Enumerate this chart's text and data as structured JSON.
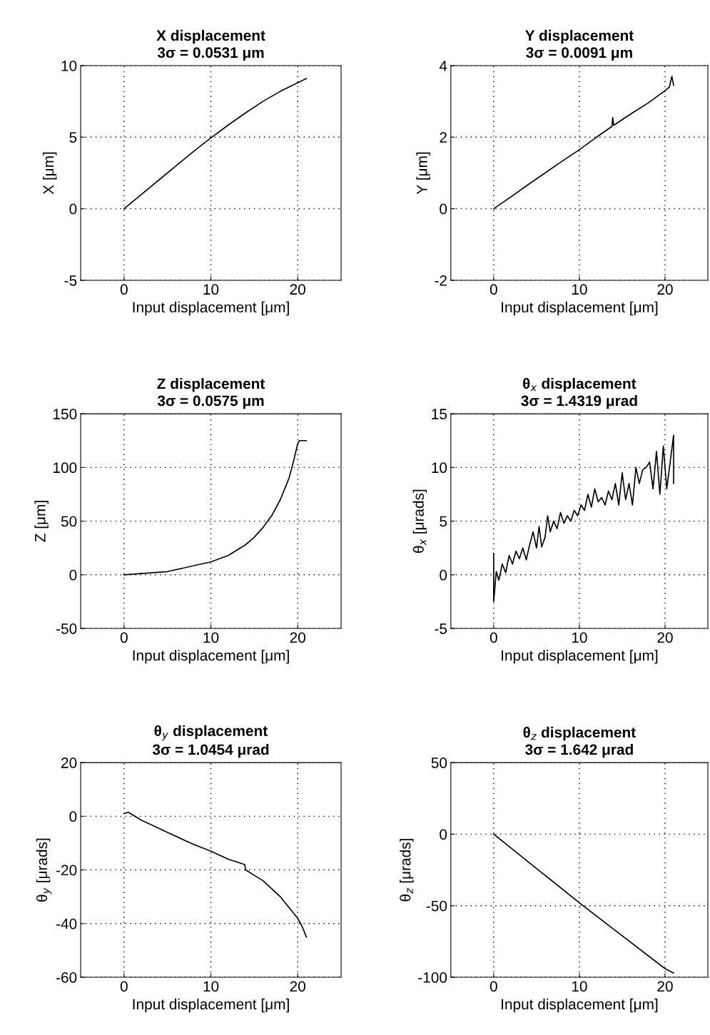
{
  "chart_data": [
    {
      "type": "line",
      "title": "X displacement",
      "subtitle": "3σ = 0.0531 μm",
      "xlabel": "Input displacement [μm]",
      "ylabel": "X [μm]",
      "xlim": [
        -5,
        25
      ],
      "xticks": [
        0,
        10,
        20
      ],
      "ylim": [
        -5,
        10
      ],
      "yticks": [
        -5,
        0,
        5,
        10
      ],
      "grid": true,
      "series": [
        {
          "color": "#000000",
          "x": [
            0,
            2,
            4,
            6,
            8,
            10,
            12,
            14,
            16,
            18,
            20,
            21
          ],
          "values": [
            0,
            1.0,
            2.0,
            3.0,
            4.0,
            4.95,
            5.85,
            6.7,
            7.5,
            8.2,
            8.8,
            9.1
          ]
        }
      ]
    },
    {
      "type": "line",
      "title": "Y displacement",
      "subtitle": "3σ = 0.0091 μm",
      "xlabel": "Input displacement [μm]",
      "ylabel": "Y [μm]",
      "xlim": [
        -5,
        25
      ],
      "xticks": [
        0,
        10,
        20
      ],
      "ylim": [
        -2,
        4
      ],
      "yticks": [
        -2,
        0,
        2,
        4
      ],
      "grid": true,
      "series": [
        {
          "color": "#000000",
          "x": [
            0,
            2,
            4,
            6,
            8,
            10,
            12,
            13.8,
            13.9,
            14,
            16,
            18,
            20,
            20.5,
            20.8,
            21
          ],
          "values": [
            0,
            0.33,
            0.67,
            1.0,
            1.33,
            1.65,
            2.0,
            2.3,
            2.55,
            2.33,
            2.65,
            2.95,
            3.3,
            3.4,
            3.7,
            3.45
          ]
        }
      ]
    },
    {
      "type": "line",
      "title": "Z displacement",
      "subtitle": "3σ = 0.0575 μm",
      "xlabel": "Input displacement [μm]",
      "ylabel": "Z [μm]",
      "xlim": [
        -5,
        25
      ],
      "xticks": [
        0,
        10,
        20
      ],
      "ylim": [
        -50,
        150
      ],
      "yticks": [
        -50,
        0,
        50,
        100,
        150
      ],
      "grid": true,
      "series": [
        {
          "color": "#000000",
          "x": [
            0,
            5,
            10,
            12,
            14,
            15,
            16,
            17,
            18,
            19,
            19.5,
            20,
            20.2,
            21
          ],
          "values": [
            0,
            3,
            12,
            18,
            28,
            35,
            44,
            55,
            70,
            90,
            105,
            122,
            125,
            125
          ]
        }
      ]
    },
    {
      "type": "line",
      "title": "θ$_{x}$ displacement",
      "subtitle": "3σ = 1.4319 μrad",
      "xlabel": "Input displacement [μm]",
      "ylabel": "θ$_{x}$ [μrads]",
      "xlim": [
        -5,
        25
      ],
      "xticks": [
        0,
        10,
        20
      ],
      "ylim": [
        -5,
        15
      ],
      "yticks": [
        -5,
        0,
        5,
        10,
        15
      ],
      "grid": true,
      "series": [
        {
          "color": "#000000",
          "x": [
            0,
            0,
            0,
            0.3,
            0.6,
            1,
            1.4,
            1.8,
            2.2,
            2.6,
            3,
            3.4,
            3.8,
            4.2,
            4.6,
            5,
            5.3,
            5.6,
            6,
            6.3,
            6.6,
            7,
            7.4,
            7.8,
            8.2,
            8.6,
            9,
            9.4,
            9.8,
            10.2,
            10.6,
            11,
            11.4,
            11.8,
            12.2,
            12.6,
            13,
            13.4,
            13.8,
            14.2,
            14.6,
            15,
            15.4,
            15.8,
            16.2,
            16.6,
            17,
            17.4,
            17.8,
            18.2,
            18.6,
            19,
            19.4,
            19.8,
            20.2,
            20.6,
            21,
            21,
            21
          ],
          "values": [
            0,
            2,
            -2.5,
            0.3,
            -0.5,
            1,
            0.2,
            1.8,
            1,
            2.2,
            1.5,
            2.5,
            1.4,
            2.8,
            4,
            2.5,
            4.5,
            2.6,
            3.5,
            5.5,
            4,
            5,
            4.3,
            5.8,
            4.8,
            5.5,
            5,
            6,
            5.5,
            6.5,
            6,
            7.5,
            6.3,
            8,
            6.8,
            7.2,
            6.5,
            7.8,
            7,
            8.5,
            6.5,
            9.5,
            7,
            8.5,
            6.5,
            10,
            8.5,
            9.8,
            10,
            10.5,
            8,
            11.5,
            7.5,
            12,
            8,
            10.5,
            13,
            8.5,
            10
          ]
        }
      ]
    },
    {
      "type": "line",
      "title": "θ$_{y}$ displacement",
      "subtitle": "3σ = 1.0454 μrad",
      "xlabel": "Input displacement [μm]",
      "ylabel": "θ$_{y}$ [μrads]",
      "xlim": [
        -5,
        25
      ],
      "xticks": [
        0,
        10,
        20
      ],
      "ylim": [
        -60,
        20
      ],
      "yticks": [
        -60,
        -40,
        -20,
        0,
        20
      ],
      "grid": true,
      "series": [
        {
          "color": "#000000",
          "x": [
            0,
            0.5,
            1,
            2,
            3,
            5,
            7,
            8,
            10,
            12,
            13.9,
            14,
            15,
            16,
            17,
            18,
            19,
            20,
            20.5,
            21
          ],
          "values": [
            1,
            1.5,
            0.5,
            -1.5,
            -3,
            -6,
            -9,
            -10.5,
            -13,
            -16,
            -18,
            -20,
            -22,
            -24,
            -27,
            -30,
            -34,
            -38,
            -41,
            -45
          ]
        }
      ]
    },
    {
      "type": "line",
      "title": "θ$_{z}$ displacement",
      "subtitle": "3σ = 1.642 μrad",
      "xlabel": "Input displacement [μm]",
      "ylabel": "θ$_{z}$ [μrads]",
      "xlim": [
        -5,
        25
      ],
      "xticks": [
        0,
        10,
        20
      ],
      "ylim": [
        -100,
        50
      ],
      "yticks": [
        -100,
        -50,
        0,
        50
      ],
      "grid": true,
      "series": [
        {
          "color": "#000000",
          "x": [
            0,
            5,
            10,
            15,
            20,
            21
          ],
          "values": [
            0,
            -24,
            -48,
            -71,
            -94,
            -97
          ]
        }
      ]
    }
  ]
}
